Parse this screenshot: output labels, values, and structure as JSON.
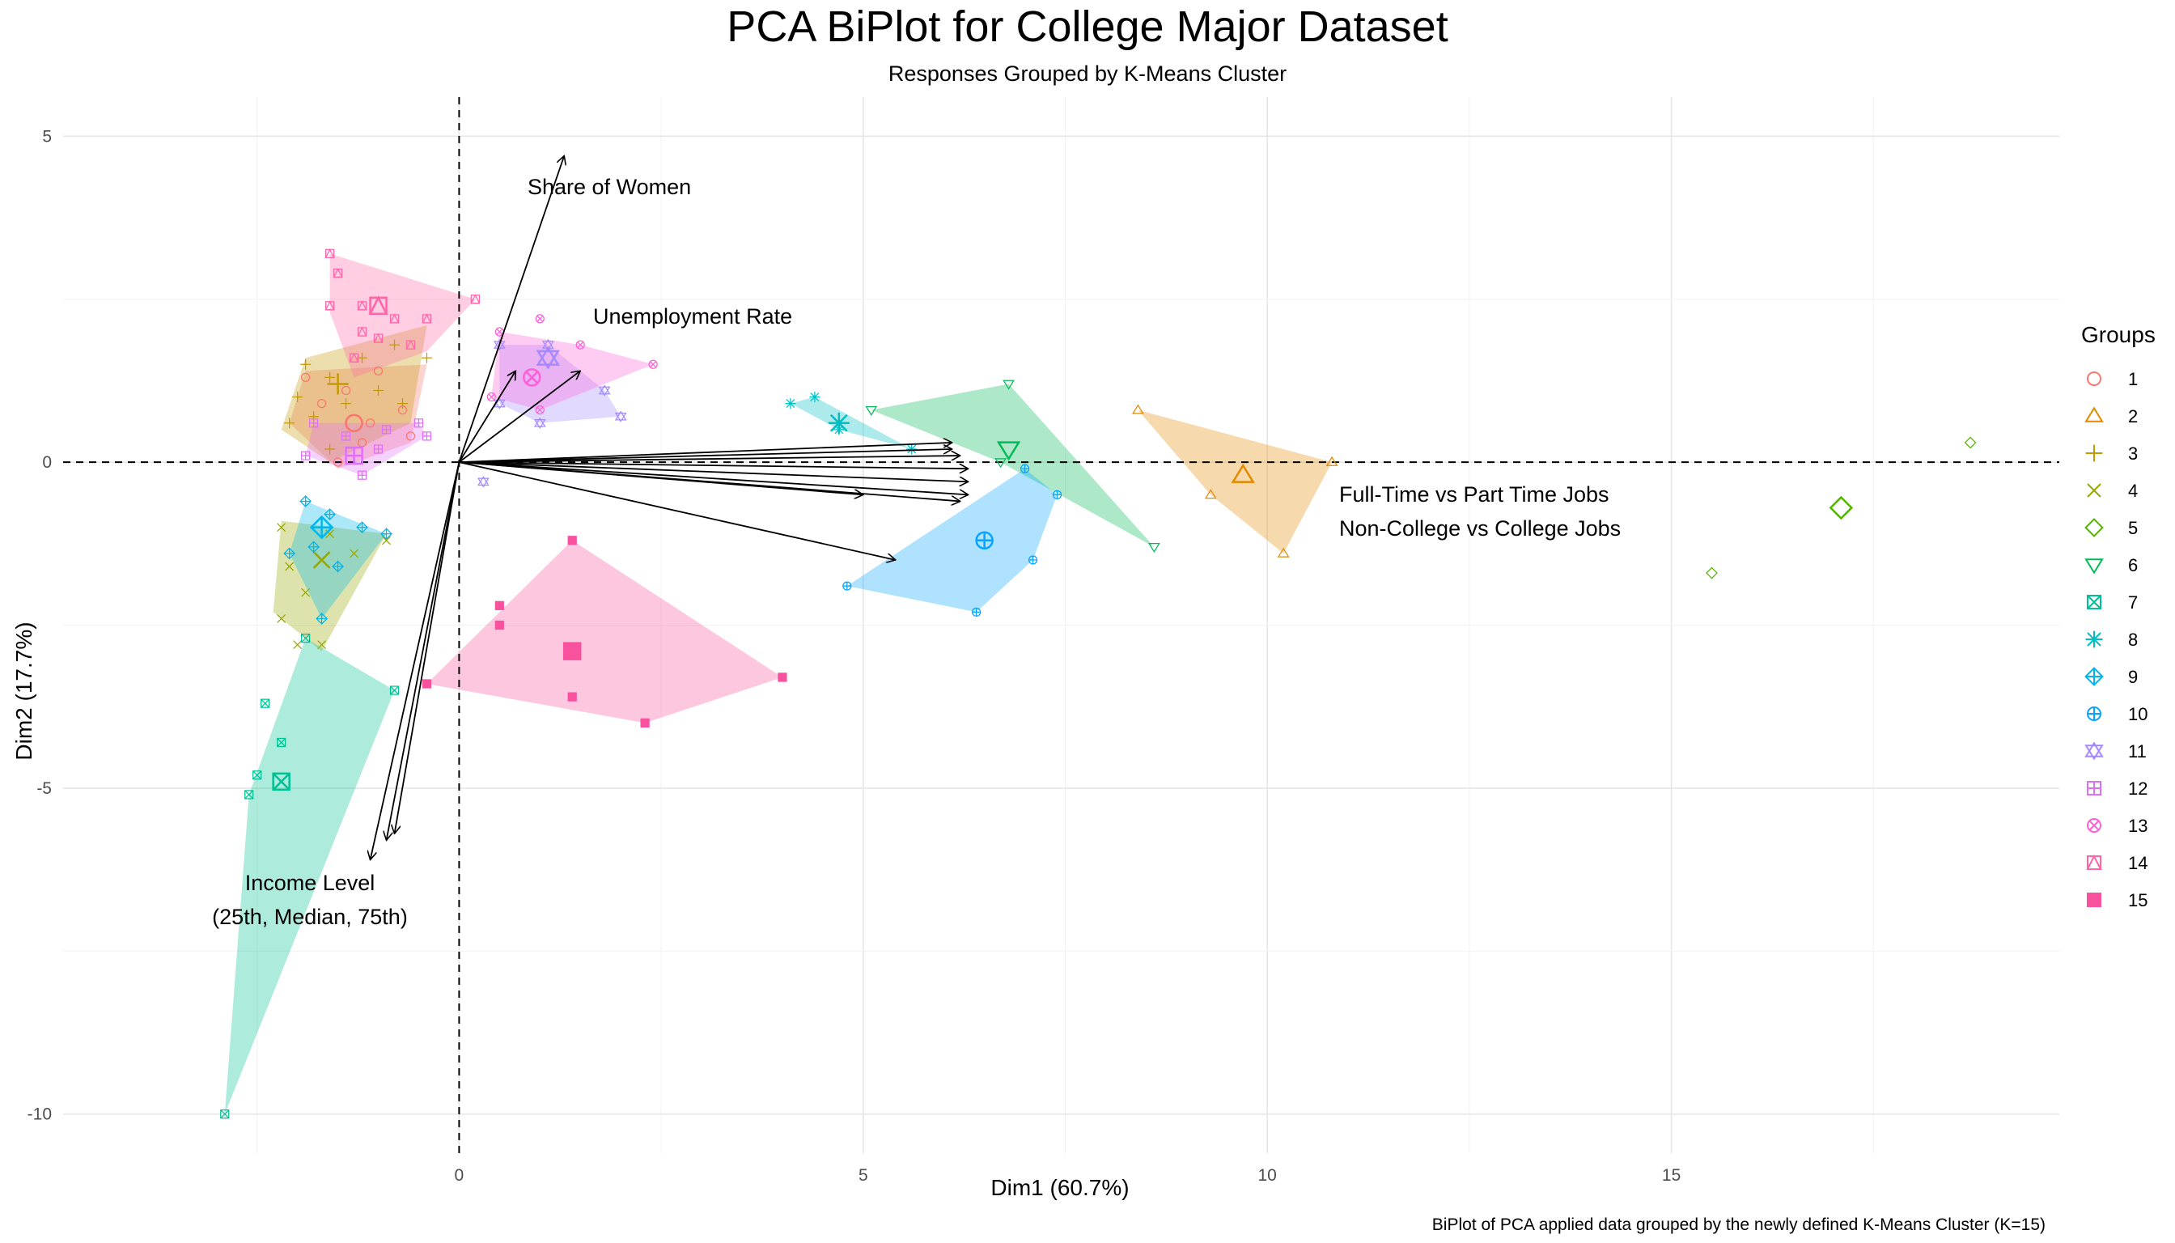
{
  "chart_data": {
    "type": "scatter",
    "title": "PCA BiPlot for College Major Dataset",
    "subtitle": "Responses Grouped by K-Means Cluster",
    "caption": "BiPlot of PCA applied data grouped by the newly defined K-Means Cluster (K=15)",
    "xlabel": "Dim1 (60.7%)",
    "ylabel": "Dim2 (17.7%)",
    "xlim": [
      -4.9,
      19.8
    ],
    "ylim": [
      -10.6,
      5.6
    ],
    "xticks": [
      0,
      5,
      10,
      15
    ],
    "yticks": [
      -10,
      -5,
      0,
      5
    ],
    "grid": true,
    "reference_lines": {
      "x": 0,
      "y": 0,
      "style": "dashed"
    },
    "legend": {
      "title": "Groups",
      "position": "right"
    },
    "groups": [
      {
        "name": "1",
        "color": "#F8766D",
        "shape": "circle",
        "centroid": [
          -1.3,
          0.6
        ],
        "hull": [
          [
            -1.9,
            1.4
          ],
          [
            -0.4,
            1.5
          ],
          [
            -0.6,
            0.3
          ],
          [
            -1.5,
            -0.1
          ],
          [
            -2.1,
            0.6
          ]
        ],
        "points": [
          [
            -1.9,
            1.3
          ],
          [
            -1.4,
            1.1
          ],
          [
            -0.7,
            0.8
          ],
          [
            -1.2,
            0.3
          ],
          [
            -1.7,
            0.9
          ],
          [
            -1.0,
            1.4
          ],
          [
            -0.6,
            0.4
          ],
          [
            -1.5,
            0.0
          ],
          [
            -1.1,
            0.6
          ]
        ]
      },
      {
        "name": "2",
        "color": "#E38900",
        "shape": "triangle",
        "centroid": [
          9.7,
          -0.2
        ],
        "hull": [
          [
            8.4,
            0.8
          ],
          [
            10.8,
            0.0
          ],
          [
            10.2,
            -1.4
          ],
          [
            9.3,
            -0.5
          ]
        ],
        "points": [
          [
            8.4,
            0.8
          ],
          [
            10.8,
            0.0
          ],
          [
            10.2,
            -1.4
          ],
          [
            9.3,
            -0.5
          ]
        ]
      },
      {
        "name": "3",
        "color": "#C49A00",
        "shape": "plus",
        "centroid": [
          -1.5,
          1.2
        ],
        "hull": [
          [
            -1.9,
            1.6
          ],
          [
            -0.4,
            2.1
          ],
          [
            -0.6,
            0.6
          ],
          [
            -1.6,
            0.0
          ],
          [
            -2.2,
            0.5
          ]
        ],
        "points": [
          [
            -1.9,
            1.5
          ],
          [
            -1.6,
            1.3
          ],
          [
            -1.2,
            1.6
          ],
          [
            -0.8,
            1.8
          ],
          [
            -0.4,
            1.6
          ],
          [
            -2.0,
            1.0
          ],
          [
            -1.8,
            0.7
          ],
          [
            -1.4,
            0.9
          ],
          [
            -1.0,
            1.1
          ],
          [
            -2.1,
            0.6
          ],
          [
            -1.6,
            0.2
          ],
          [
            -0.7,
            0.9
          ]
        ]
      },
      {
        "name": "4",
        "color": "#99A800",
        "shape": "cross",
        "centroid": [
          -1.7,
          -1.5
        ],
        "hull": [
          [
            -2.2,
            -0.9
          ],
          [
            -0.9,
            -1.1
          ],
          [
            -1.7,
            -2.9
          ],
          [
            -2.3,
            -2.3
          ]
        ],
        "points": [
          [
            -2.2,
            -1.0
          ],
          [
            -2.1,
            -1.6
          ],
          [
            -1.9,
            -2.0
          ],
          [
            -2.2,
            -2.4
          ],
          [
            -2.0,
            -2.8
          ],
          [
            -1.7,
            -2.8
          ],
          [
            -1.3,
            -1.4
          ],
          [
            -0.9,
            -1.2
          ],
          [
            -1.6,
            -1.1
          ]
        ]
      },
      {
        "name": "5",
        "color": "#53B400",
        "shape": "diamond",
        "centroid": [
          17.1,
          -0.7
        ],
        "hull": [],
        "points": [
          [
            18.7,
            0.3
          ],
          [
            15.5,
            -1.7
          ]
        ]
      },
      {
        "name": "6",
        "color": "#00BC56",
        "shape": "triangle-down",
        "centroid": [
          6.8,
          0.2
        ],
        "hull": [
          [
            5.1,
            0.8
          ],
          [
            6.8,
            1.2
          ],
          [
            8.6,
            -1.3
          ],
          [
            6.7,
            0.0
          ]
        ],
        "points": [
          [
            5.1,
            0.8
          ],
          [
            6.8,
            1.2
          ],
          [
            8.6,
            -1.3
          ],
          [
            6.7,
            0.0
          ]
        ]
      },
      {
        "name": "7",
        "color": "#00C094",
        "shape": "square-cross",
        "centroid": [
          -2.2,
          -4.9
        ],
        "hull": [
          [
            -1.9,
            -2.7
          ],
          [
            -0.8,
            -3.5
          ],
          [
            -2.9,
            -10.0
          ],
          [
            -2.6,
            -5.1
          ]
        ],
        "points": [
          [
            -1.9,
            -2.7
          ],
          [
            -0.8,
            -3.5
          ],
          [
            -2.4,
            -3.7
          ],
          [
            -2.2,
            -4.3
          ],
          [
            -2.5,
            -4.8
          ],
          [
            -2.6,
            -5.1
          ],
          [
            -2.9,
            -10.0
          ]
        ]
      },
      {
        "name": "8",
        "color": "#00BFC4",
        "shape": "asterisk",
        "centroid": [
          4.7,
          0.6
        ],
        "hull": [
          [
            4.1,
            0.9
          ],
          [
            4.4,
            1.0
          ],
          [
            5.6,
            0.2
          ],
          [
            4.7,
            0.5
          ]
        ],
        "points": [
          [
            4.1,
            0.9
          ],
          [
            4.4,
            1.0
          ],
          [
            5.6,
            0.2
          ],
          [
            4.7,
            0.5
          ]
        ]
      },
      {
        "name": "9",
        "color": "#00B6EB",
        "shape": "diamond-plus",
        "centroid": [
          -1.7,
          -1.0
        ],
        "hull": [
          [
            -1.9,
            -0.6
          ],
          [
            -0.9,
            -1.1
          ],
          [
            -1.7,
            -2.4
          ],
          [
            -2.1,
            -1.4
          ]
        ],
        "points": [
          [
            -1.9,
            -0.6
          ],
          [
            -1.6,
            -0.8
          ],
          [
            -1.2,
            -1.0
          ],
          [
            -0.9,
            -1.1
          ],
          [
            -1.8,
            -1.3
          ],
          [
            -1.5,
            -1.6
          ],
          [
            -1.7,
            -2.4
          ],
          [
            -2.1,
            -1.4
          ]
        ]
      },
      {
        "name": "10",
        "color": "#06A4FF",
        "shape": "circle-plus",
        "centroid": [
          6.5,
          -1.2
        ],
        "hull": [
          [
            4.8,
            -1.9
          ],
          [
            7.0,
            -0.1
          ],
          [
            7.4,
            -0.5
          ],
          [
            7.1,
            -1.5
          ],
          [
            6.4,
            -2.3
          ]
        ],
        "points": [
          [
            4.8,
            -1.9
          ],
          [
            7.0,
            -0.1
          ],
          [
            7.4,
            -0.5
          ],
          [
            7.1,
            -1.5
          ],
          [
            6.4,
            -2.3
          ]
        ]
      },
      {
        "name": "11",
        "color": "#A58AFF",
        "shape": "star-of-david",
        "centroid": [
          1.1,
          1.6
        ],
        "hull": [
          [
            0.5,
            1.8
          ],
          [
            1.1,
            1.8
          ],
          [
            1.8,
            1.1
          ],
          [
            2.0,
            0.7
          ],
          [
            1.0,
            0.6
          ],
          [
            0.5,
            0.9
          ]
        ],
        "points": [
          [
            0.5,
            1.8
          ],
          [
            1.1,
            1.8
          ],
          [
            1.8,
            1.1
          ],
          [
            2.0,
            0.7
          ],
          [
            1.0,
            0.6
          ],
          [
            0.5,
            0.9
          ],
          [
            0.3,
            -0.3
          ]
        ]
      },
      {
        "name": "12",
        "color": "#DF70F8",
        "shape": "square-plus",
        "centroid": [
          -1.3,
          0.1
        ],
        "hull": [
          [
            -1.8,
            0.6
          ],
          [
            -0.5,
            0.6
          ],
          [
            -0.4,
            0.4
          ],
          [
            -1.2,
            -0.2
          ],
          [
            -1.9,
            0.1
          ]
        ],
        "points": [
          [
            -1.8,
            0.6
          ],
          [
            -1.4,
            0.4
          ],
          [
            -0.9,
            0.5
          ],
          [
            -0.5,
            0.6
          ],
          [
            -0.4,
            0.4
          ],
          [
            -1.2,
            -0.2
          ],
          [
            -1.9,
            0.1
          ],
          [
            -1.0,
            0.2
          ]
        ]
      },
      {
        "name": "13",
        "color": "#FB61D7",
        "shape": "circle-cross",
        "centroid": [
          0.9,
          1.3
        ],
        "hull": [
          [
            0.5,
            2.0
          ],
          [
            1.5,
            1.8
          ],
          [
            2.4,
            1.5
          ],
          [
            1.0,
            0.8
          ],
          [
            0.4,
            1.0
          ]
        ],
        "points": [
          [
            0.5,
            2.0
          ],
          [
            1.0,
            2.2
          ],
          [
            1.5,
            1.8
          ],
          [
            2.4,
            1.5
          ],
          [
            1.0,
            0.8
          ],
          [
            0.4,
            1.0
          ]
        ]
      },
      {
        "name": "14",
        "color": "#FF66A8",
        "shape": "square-triangle",
        "centroid": [
          -1.0,
          2.4
        ],
        "hull": [
          [
            -1.6,
            3.2
          ],
          [
            0.2,
            2.5
          ],
          [
            -0.4,
            1.7
          ],
          [
            -1.3,
            1.3
          ],
          [
            -1.6,
            2.3
          ]
        ],
        "points": [
          [
            -1.6,
            3.2
          ],
          [
            -1.5,
            2.9
          ],
          [
            -1.6,
            2.4
          ],
          [
            -1.2,
            2.4
          ],
          [
            -0.8,
            2.2
          ],
          [
            -0.4,
            2.2
          ],
          [
            0.2,
            2.5
          ],
          [
            -1.0,
            1.9
          ],
          [
            -1.3,
            1.6
          ],
          [
            -0.6,
            1.8
          ],
          [
            -1.2,
            2.0
          ]
        ]
      },
      {
        "name": "15",
        "color": "#F8519E",
        "shape": "square",
        "centroid": [
          1.4,
          -2.9
        ],
        "hull": [
          [
            1.4,
            -1.2
          ],
          [
            4.0,
            -3.3
          ],
          [
            2.3,
            -4.0
          ],
          [
            -0.4,
            -3.4
          ]
        ],
        "points": [
          [
            1.4,
            -1.2
          ],
          [
            0.5,
            -2.2
          ],
          [
            0.5,
            -2.5
          ],
          [
            -0.4,
            -3.4
          ],
          [
            1.4,
            -3.6
          ],
          [
            2.3,
            -4.0
          ],
          [
            4.0,
            -3.3
          ]
        ]
      }
    ],
    "loadings": [
      {
        "label": "Share of Women",
        "label_lines": [
          "Share of Women"
        ],
        "arrows": [
          [
            1.3,
            4.7
          ]
        ]
      },
      {
        "label": "Unemployment Rate",
        "label_lines": [
          "Unemployment Rate"
        ],
        "arrows": [
          [
            1.5,
            1.4
          ],
          [
            0.7,
            1.4
          ]
        ]
      },
      {
        "label": "Full-Time vs Part Time Jobs",
        "label_lines": [
          "Full-Time vs Part Time Jobs"
        ],
        "arrows": [
          [
            6.1,
            0.3
          ],
          [
            6.1,
            0.2
          ],
          [
            6.2,
            0.1
          ],
          [
            6.3,
            -0.1
          ],
          [
            6.3,
            -0.3
          ],
          [
            6.3,
            -0.5
          ],
          [
            6.2,
            -0.6
          ]
        ]
      },
      {
        "label": "Non-College vs College Jobs",
        "label_lines": [
          "Non-College vs College Jobs"
        ],
        "arrows": [
          [
            5.0,
            -0.5
          ],
          [
            5.4,
            -1.5
          ]
        ]
      },
      {
        "label": "Income Level (25th, Median, 75th)",
        "label_lines": [
          "Income Level",
          "(25th, Median, 75th)"
        ],
        "arrows": [
          [
            -1.1,
            -6.1
          ],
          [
            -0.9,
            -5.8
          ],
          [
            -0.8,
            -5.7
          ]
        ]
      }
    ]
  }
}
